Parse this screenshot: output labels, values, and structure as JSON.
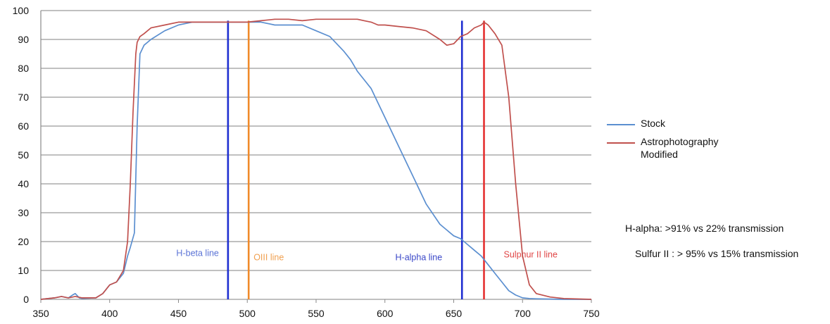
{
  "chart_data": {
    "type": "line",
    "title": "",
    "xlabel": "",
    "ylabel": "",
    "xlim": [
      350,
      750
    ],
    "ylim": [
      0,
      100
    ],
    "x_ticks": [
      350,
      400,
      450,
      500,
      550,
      600,
      650,
      700,
      750
    ],
    "y_ticks": [
      0,
      10,
      20,
      30,
      40,
      50,
      60,
      70,
      80,
      90,
      100
    ],
    "grid": "horizontal",
    "legend_position": "right",
    "series": [
      {
        "name": "Stock",
        "color": "#5b8fd0",
        "x": [
          350,
          360,
          365,
          370,
          373,
          375,
          378,
          380,
          390,
          395,
          400,
          405,
          410,
          413,
          415,
          418,
          420,
          422,
          425,
          430,
          440,
          450,
          460,
          470,
          480,
          490,
          500,
          510,
          520,
          530,
          540,
          550,
          560,
          570,
          575,
          580,
          585,
          590,
          595,
          600,
          610,
          620,
          630,
          640,
          650,
          655,
          660,
          665,
          670,
          675,
          680,
          685,
          690,
          695,
          700,
          705,
          710,
          720,
          730,
          750
        ],
        "y": [
          0,
          0.5,
          1,
          0.5,
          1.5,
          2,
          0.5,
          0.3,
          0.5,
          2,
          5,
          6,
          9,
          15,
          18,
          23,
          60,
          85,
          88,
          90,
          93,
          95,
          96,
          96,
          96,
          96,
          96,
          96,
          95,
          95,
          95,
          93,
          91,
          86,
          83,
          79,
          76,
          73,
          68,
          63,
          53,
          43,
          33,
          26,
          22,
          21,
          19,
          17,
          15,
          12,
          9,
          6,
          3,
          1.5,
          0.5,
          0.3,
          0.2,
          0.1,
          0,
          0
        ]
      },
      {
        "name": "Astrophotography\nModified",
        "color": "#c0504d",
        "x": [
          350,
          360,
          365,
          370,
          375,
          380,
          390,
          395,
          400,
          405,
          410,
          413,
          415,
          417,
          419,
          420,
          422,
          425,
          430,
          440,
          450,
          460,
          470,
          480,
          490,
          500,
          510,
          520,
          530,
          540,
          550,
          560,
          570,
          575,
          580,
          585,
          590,
          595,
          600,
          610,
          620,
          630,
          640,
          645,
          650,
          655,
          660,
          665,
          670,
          672,
          675,
          680,
          685,
          690,
          695,
          700,
          705,
          710,
          720,
          730,
          750
        ],
        "y": [
          0,
          0.5,
          1,
          0.5,
          1,
          0.5,
          0.5,
          2,
          5,
          6,
          10,
          20,
          40,
          65,
          85,
          89,
          91,
          92,
          94,
          95,
          96,
          96,
          96,
          96,
          96,
          96,
          96.5,
          97,
          97,
          96.5,
          97,
          97,
          97,
          97,
          97,
          96.5,
          96,
          95,
          95,
          94.5,
          94,
          93,
          90,
          88,
          88.5,
          91,
          92,
          94,
          95,
          96,
          95,
          92,
          88,
          70,
          40,
          15,
          5,
          2,
          0.8,
          0.3,
          0
        ]
      }
    ],
    "vertical_lines": [
      {
        "x": 486,
        "color": "#1f2fd1",
        "label": "H-beta line",
        "label_color": "#5b73d6",
        "label_y": 15,
        "label_anchor": "end",
        "label_offset": -13
      },
      {
        "x": 501,
        "color": "#f08a2b",
        "label": "OIII line",
        "label_color": "#f0a050",
        "label_y": 13.5,
        "label_anchor": "start",
        "label_offset": 7
      },
      {
        "x": 656,
        "color": "#1f2fd1",
        "label": "H-alpha line",
        "label_color": "#3a47c8",
        "label_y": 13.5,
        "label_anchor": "end",
        "label_offset": -28
      },
      {
        "x": 672,
        "color": "#e53030",
        "label": "Sulphur II line",
        "label_color": "#e04545",
        "label_y": 14.5,
        "label_anchor": "start",
        "label_offset": 28
      }
    ]
  },
  "notes": [
    "H-alpha: >91% vs 22% transmission",
    "Sulfur II : > 95% vs 15% transmission"
  ]
}
